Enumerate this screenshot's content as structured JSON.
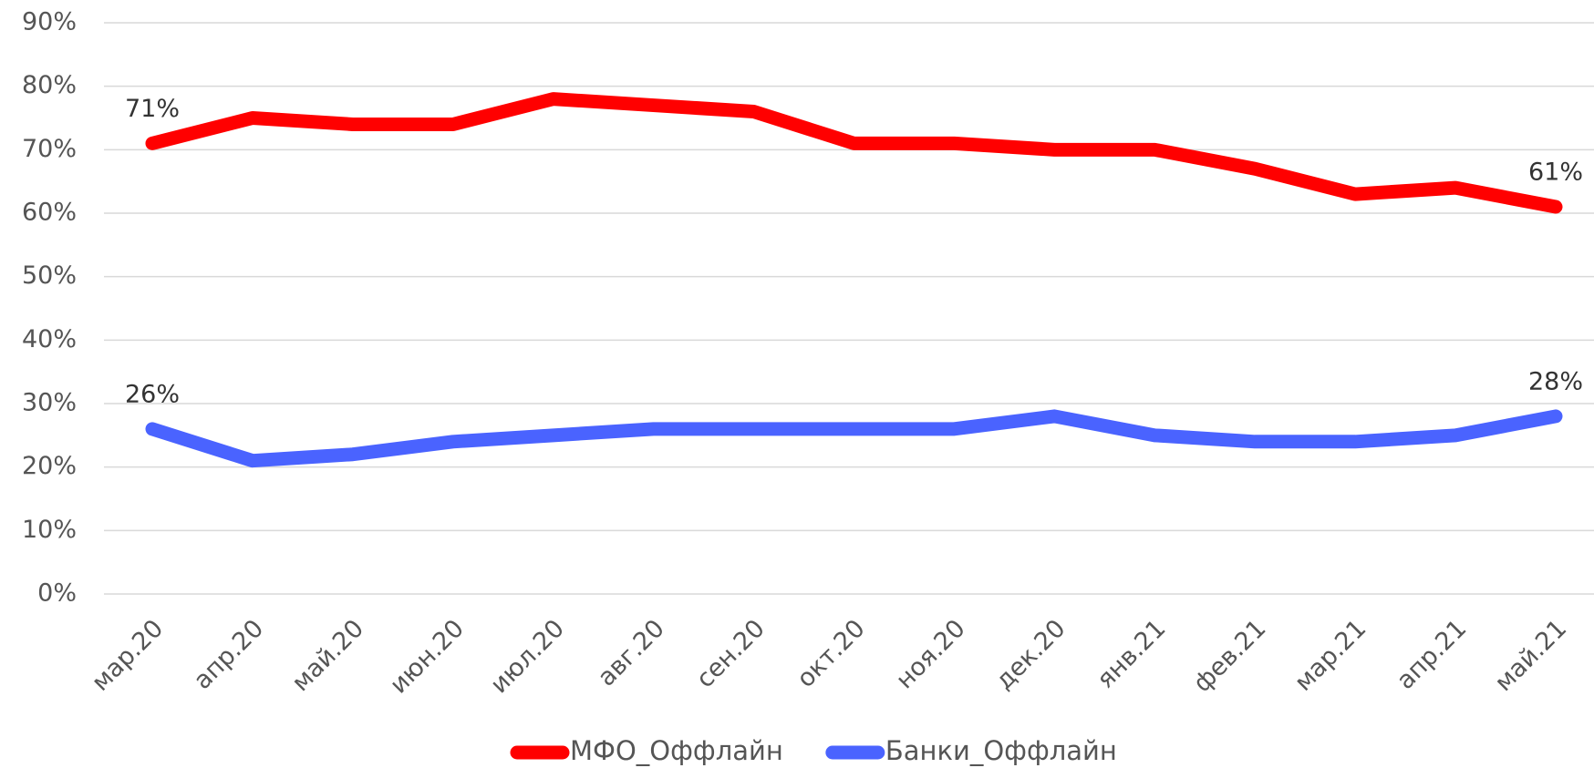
{
  "chart_data": {
    "type": "line",
    "categories": [
      "мар.20",
      "апр.20",
      "май.20",
      "июн.20",
      "июл.20",
      "авг.20",
      "сен.20",
      "окт.20",
      "ноя.20",
      "дек.20",
      "янв.21",
      "фев.21",
      "мар.21",
      "апр.21",
      "май.21"
    ],
    "series": [
      {
        "name": "МФО_Оффлайн",
        "color": "#ff0000",
        "values": [
          71,
          75,
          74,
          74,
          78,
          77,
          76,
          71,
          71,
          70,
          70,
          67,
          63,
          64,
          61
        ],
        "value_labels": [
          "71%",
          null,
          null,
          null,
          null,
          null,
          null,
          null,
          null,
          null,
          null,
          null,
          null,
          null,
          "61%"
        ]
      },
      {
        "name": "Банки_Оффлайн",
        "color": "#4a63ff",
        "values": [
          26,
          21,
          22,
          24,
          25,
          26,
          26,
          26,
          26,
          28,
          25,
          24,
          24,
          25,
          28
        ],
        "value_labels": [
          "26%",
          null,
          null,
          null,
          null,
          null,
          null,
          null,
          null,
          null,
          null,
          null,
          null,
          null,
          "28%"
        ]
      }
    ],
    "ylim": [
      0,
      90
    ],
    "yticks": [
      {
        "value": 0,
        "label": "0%"
      },
      {
        "value": 10,
        "label": "10%"
      },
      {
        "value": 20,
        "label": "20%"
      },
      {
        "value": 30,
        "label": "30%"
      },
      {
        "value": 40,
        "label": "40%"
      },
      {
        "value": 50,
        "label": "50%"
      },
      {
        "value": 60,
        "label": "60%"
      },
      {
        "value": 70,
        "label": "70%"
      },
      {
        "value": 80,
        "label": "80%"
      },
      {
        "value": 90,
        "label": "90%"
      }
    ],
    "grid": true,
    "legend": "bottom"
  }
}
